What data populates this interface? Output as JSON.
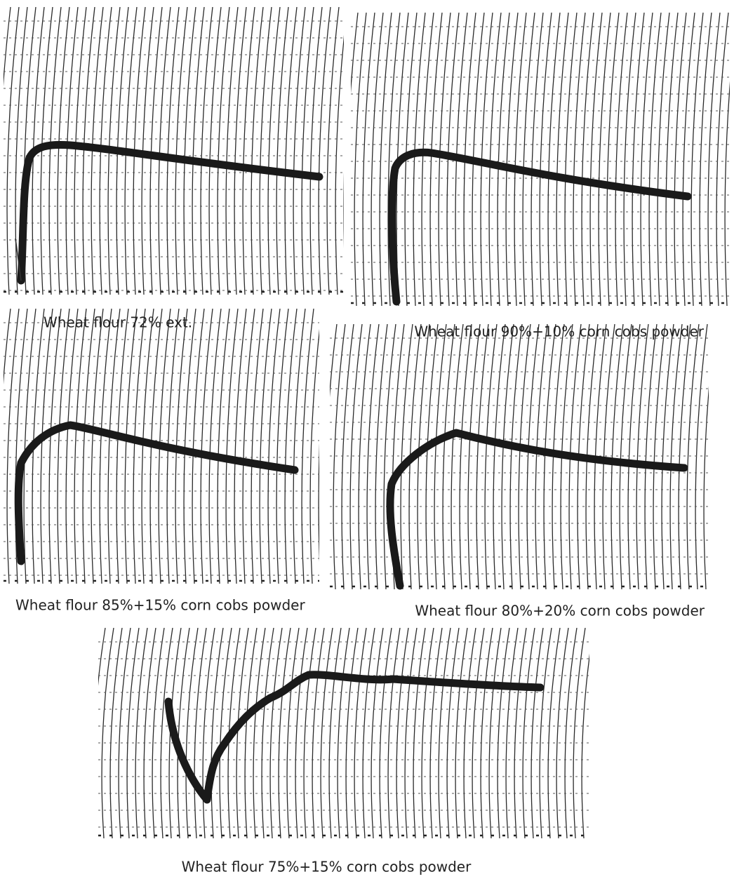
{
  "panels": [
    {
      "caption": "Wheat flour 72% ext."
    },
    {
      "caption": "Wheat flour 90%+10% corn cobs powder"
    },
    {
      "caption": "Wheat flour 85%+15% corn cobs powder"
    },
    {
      "caption": "Wheat flour 80%+20% corn cobs powder"
    },
    {
      "caption": "Wheat flour 75%+15% corn cobs powder"
    }
  ]
}
